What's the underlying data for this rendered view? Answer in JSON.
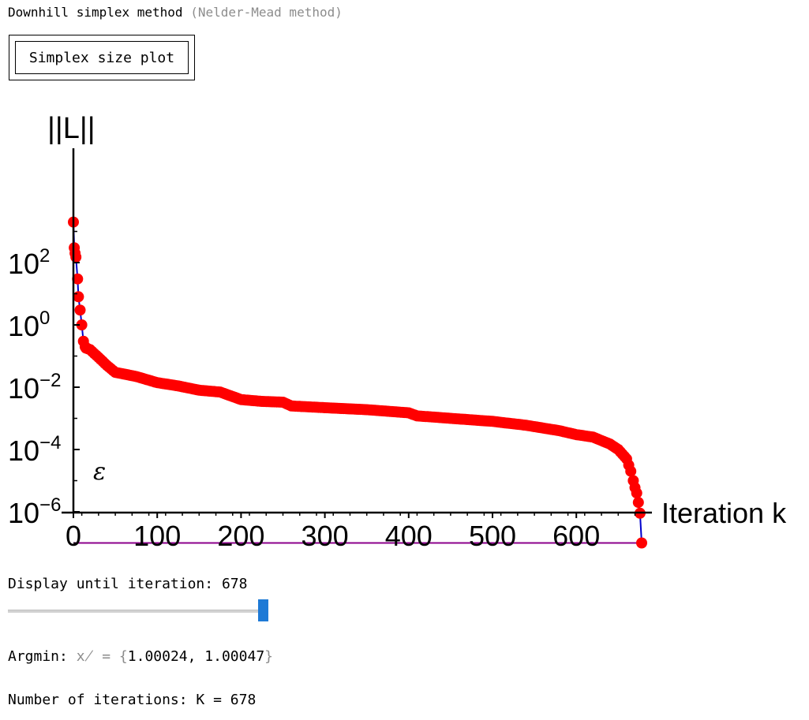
{
  "header": {
    "title": "Downhill simplex method",
    "subtitle": "(Nelder-Mead method)"
  },
  "toolbar": {
    "plot_button_label": "Simplex size plot"
  },
  "controls": {
    "display_label": "Display until iteration:",
    "display_value": "678",
    "slider": {
      "min": 0,
      "max": 678,
      "value": 678
    },
    "argmin_label": "Argmin:",
    "argmin_symbol": "x̸",
    "argmin_eq": "=",
    "argmin_open": "{",
    "argmin_values": "1.00024, 1.00047",
    "argmin_close": "}",
    "iterations_label": "Number of iterations: K =",
    "iterations_value": "678"
  },
  "colors": {
    "points": "#ff0000",
    "line": "#0000cc",
    "epsilon": "#8b008b",
    "slider": "#1e7ad6"
  },
  "chart_data": {
    "type": "scatter",
    "ylabel": "||L||",
    "xlabel": "Iteration k",
    "y_scale": "log",
    "xlim": [
      0,
      690
    ],
    "ylim": [
      1e-08,
      10000.0
    ],
    "x_ticks": [
      "0",
      "100",
      "200",
      "300",
      "400",
      "500",
      "600"
    ],
    "y_ticks": [
      {
        "base": "10",
        "exp": "2"
      },
      {
        "base": "10",
        "exp": "0"
      },
      {
        "base": "10",
        "exp": "−2"
      },
      {
        "base": "10",
        "exp": "−4"
      },
      {
        "base": "10",
        "exp": "−6"
      }
    ],
    "epsilon_label": "ε",
    "epsilon_value": 1e-07,
    "curve_key_points": [
      [
        0,
        2000
      ],
      [
        1,
        300
      ],
      [
        2,
        200
      ],
      [
        3,
        150
      ],
      [
        5,
        30
      ],
      [
        6,
        8
      ],
      [
        8,
        3
      ],
      [
        10,
        1
      ],
      [
        12,
        0.3
      ],
      [
        14,
        0.2
      ],
      [
        15,
        0.18
      ],
      [
        20,
        0.16
      ],
      [
        30,
        0.09
      ],
      [
        40,
        0.05
      ],
      [
        50,
        0.03
      ],
      [
        75,
        0.022
      ],
      [
        100,
        0.014
      ],
      [
        125,
        0.011
      ],
      [
        150,
        0.008
      ],
      [
        175,
        0.007
      ],
      [
        190,
        0.005
      ],
      [
        200,
        0.004
      ],
      [
        225,
        0.0035
      ],
      [
        250,
        0.0033
      ],
      [
        260,
        0.0025
      ],
      [
        300,
        0.0022
      ],
      [
        350,
        0.0019
      ],
      [
        400,
        0.0015
      ],
      [
        410,
        0.0012
      ],
      [
        450,
        0.001
      ],
      [
        500,
        0.0008
      ],
      [
        540,
        0.0006
      ],
      [
        580,
        0.0004
      ],
      [
        600,
        0.0003
      ],
      [
        620,
        0.00025
      ],
      [
        640,
        0.00015
      ],
      [
        650,
        0.0001
      ],
      [
        660,
        5e-05
      ],
      [
        665,
        2e-05
      ],
      [
        668,
        1e-05
      ],
      [
        670,
        6e-06
      ],
      [
        672,
        4e-06
      ],
      [
        674,
        2e-06
      ],
      [
        676,
        9e-07
      ],
      [
        678,
        1e-07
      ]
    ]
  }
}
